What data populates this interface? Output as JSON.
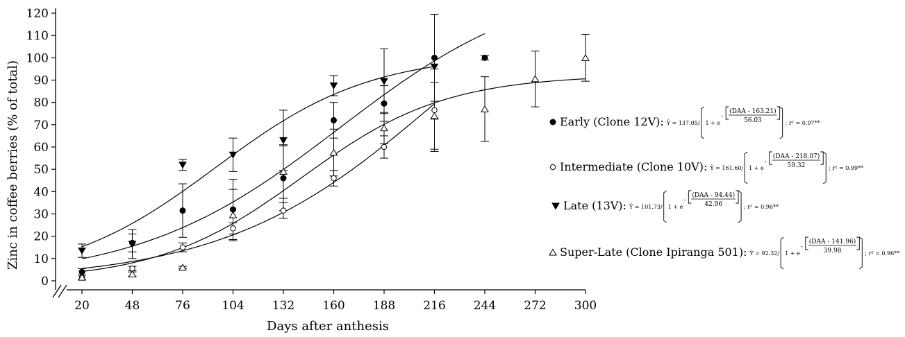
{
  "chart_data": {
    "type": "scatter",
    "title": "",
    "xlabel": "Days after anthesis",
    "ylabel": "Zinc in coffee berries (% of total)",
    "xlim": [
      20,
      300
    ],
    "ylim": [
      0,
      120
    ],
    "x_ticks": [
      "20",
      "48",
      "76",
      "104",
      "132",
      "160",
      "188",
      "216",
      "244",
      "272",
      "300"
    ],
    "y_ticks": [
      "0",
      "10",
      "20",
      "30",
      "40",
      "50",
      "60",
      "70",
      "80",
      "90",
      "100",
      "110",
      "120"
    ],
    "axis_break": true,
    "grid": false,
    "legend_position": "right",
    "series": [
      {
        "name": "Early (Clone 12V):",
        "marker": "filled-circle",
        "equation": {
          "a": "137.05",
          "num": "(DAA - 163.21)",
          "den": "56.03",
          "r2": "r² = 0.97**"
        },
        "fit": {
          "a": 137.05,
          "b": 163.21,
          "c": 56.03
        },
        "x": [
          20,
          48,
          76,
          104,
          132,
          160,
          188,
          216,
          244
        ],
        "y": [
          4,
          17,
          31.5,
          32,
          46,
          72,
          79.5,
          100,
          100
        ],
        "err": [
          1.5,
          4,
          12,
          13.5,
          14.5,
          8,
          8,
          19.5,
          1
        ]
      },
      {
        "name": "Intermediate (Clone 10V):",
        "marker": "open-circle",
        "equation": {
          "a": "161.60",
          "num": "(DAA - 218.07)",
          "den": "59.32",
          "r2": "r² = 0.99**"
        },
        "fit": {
          "a": 161.6,
          "b": 218.07,
          "c": 59.32
        },
        "x": [
          20,
          48,
          76,
          104,
          132,
          160,
          188,
          216
        ],
        "y": [
          1.5,
          5.5,
          15,
          23.5,
          31.5,
          46,
          60,
          76.5
        ],
        "err": [
          1,
          1,
          2,
          2.5,
          3.5,
          3.5,
          5,
          18.5
        ]
      },
      {
        "name": "Late (13V):",
        "marker": "filled-triangle-down",
        "equation": {
          "a": "101.73",
          "num": "(DAA - 94.44)",
          "den": "42.96",
          "r2": "r² = 0.96**"
        },
        "fit": {
          "a": 101.73,
          "b": 94.44,
          "c": 42.96
        },
        "x": [
          20,
          48,
          76,
          104,
          132,
          160,
          188,
          216
        ],
        "y": [
          13.5,
          16.5,
          52,
          56.5,
          63,
          87.5,
          89.5,
          96
        ],
        "err": [
          3,
          6.5,
          2.5,
          7.5,
          13.5,
          4.5,
          14.5,
          23.5
        ]
      },
      {
        "name": "Super-Late (Clone Ipiranga 501):",
        "marker": "open-triangle-up",
        "equation": {
          "a": "92.32",
          "num": "(DAA - 141.96)",
          "den": "39.98",
          "r2": "r² = 0.96**"
        },
        "fit": {
          "a": 92.32,
          "b": 141.96,
          "c": 39.98
        },
        "x": [
          20,
          48,
          76,
          104,
          132,
          160,
          188,
          216,
          244,
          272,
          300
        ],
        "y": [
          1.5,
          3,
          6,
          29.5,
          49,
          57.5,
          68.5,
          74,
          77,
          90.5,
          100
        ],
        "err": [
          1,
          1,
          0.5,
          11.5,
          12,
          10.5,
          7,
          15,
          14.5,
          12.5,
          10.5
        ]
      }
    ]
  }
}
